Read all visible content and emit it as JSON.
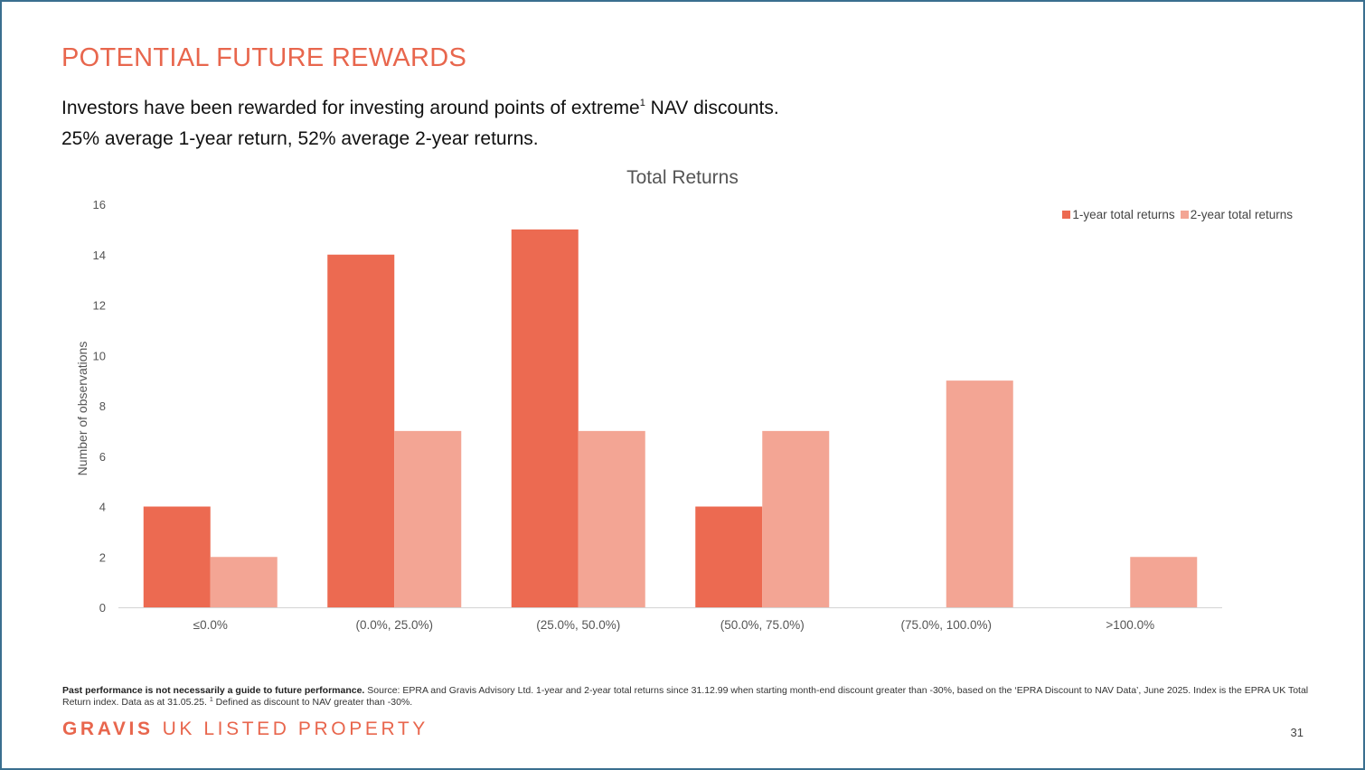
{
  "slide": {
    "title": "POTENTIAL FUTURE REWARDS",
    "subtitle_line1_before_sup": "Investors have been rewarded for investing around points of extreme",
    "subtitle_line1_sup": "1",
    "subtitle_line1_after_sup": " NAV discounts.",
    "subtitle_line2": "25% average 1-year return, 52% average 2-year returns.",
    "footnote_bold": "Past performance is not necessarily a guide to future performance.",
    "footnote_text": " Source: EPRA and Gravis Advisory Ltd. 1-year and 2-year total returns since 31.12.99 when starting month-end discount greater than -30%, based on the ‘EPRA Discount to NAV Data’, June 2025. Index is the EPRA UK Total Return index. Data as at 31.05.25. ",
    "footnote_sup": "1",
    "footnote_after_sup": " Defined as discount to NAV greater than -30%.",
    "brand_strong": "GRAVIS",
    "brand_rest": "UK LISTED PROPERTY",
    "page_number": "31"
  },
  "colors": {
    "accent": "#e8664d",
    "series_1": "#ec6a51",
    "series_2": "#f3a594",
    "border": "#3a6f8f"
  },
  "chart_data": {
    "type": "bar",
    "title": "Total Returns",
    "xlabel": "",
    "ylabel": "Number of observations",
    "ylim": [
      0,
      16
    ],
    "yticks": [
      0,
      2,
      4,
      6,
      8,
      10,
      12,
      14,
      16
    ],
    "grid": false,
    "legend_position": "top-right",
    "categories": [
      "≤0.0%",
      "(0.0%, 25.0%)",
      "(25.0%, 50.0%)",
      "(50.0%, 75.0%)",
      "(75.0%, 100.0%)",
      ">100.0%"
    ],
    "series": [
      {
        "name": "1-year total returns",
        "color": "#ec6a51",
        "values": [
          4,
          14,
          15,
          4,
          0,
          0
        ]
      },
      {
        "name": "2-year total returns",
        "color": "#f3a594",
        "values": [
          2,
          7,
          7,
          7,
          9,
          2
        ]
      }
    ]
  }
}
